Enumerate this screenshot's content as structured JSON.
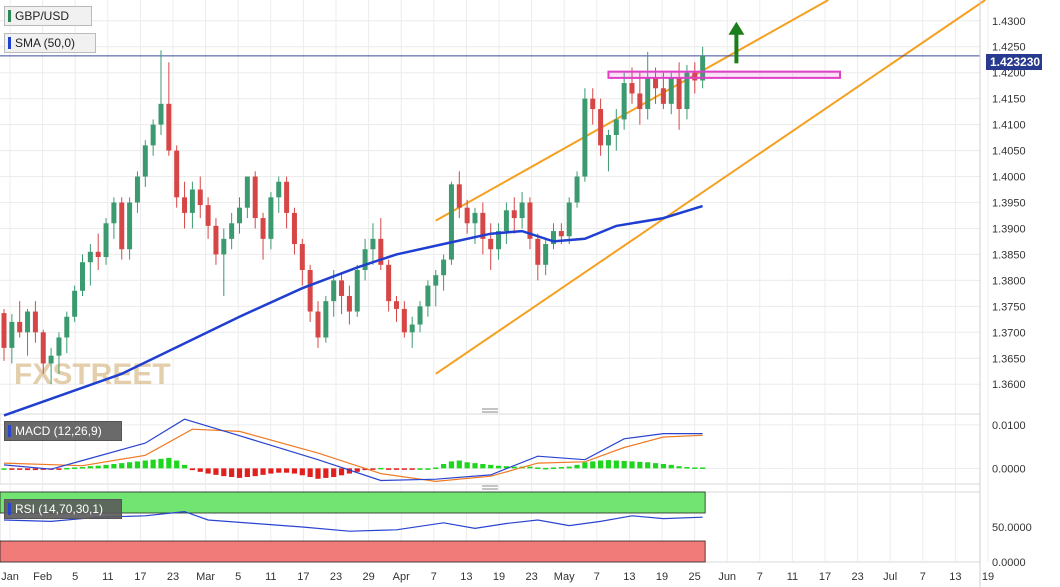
{
  "header": {
    "symbol": "GBP/USD",
    "sma_label": "SMA (50,0)",
    "last_price": "1.423230"
  },
  "watermark": "FXSTREET",
  "colors": {
    "bull": "#3c9a70",
    "bear": "#d64646",
    "sma": "#1f3fd1",
    "channel": "#f5a020",
    "resistance_box": "#e040c8",
    "arrow": "#1a7f1a",
    "price_line": "#3b4a9a",
    "macd_line": "#2a44d0",
    "signal_line": "#f07a24",
    "hist_pos": "#1fd61f",
    "hist_neg": "#e01f1f",
    "rsi_line": "#2a44d0",
    "rsi_overbought": "#72e472",
    "rsi_oversold": "#f07b78"
  },
  "chart_data": [
    {
      "type": "candlestick",
      "title": "GBP/USD",
      "indicator": "SMA (50,0)",
      "ylim": [
        1.356,
        1.434
      ],
      "y_ticks": [
        "1.4300",
        "1.4250",
        "1.4200",
        "1.4150",
        "1.4100",
        "1.4050",
        "1.4000",
        "1.3950",
        "1.3900",
        "1.3850",
        "1.3800",
        "1.3750",
        "1.3700",
        "1.3650",
        "1.3600"
      ],
      "x_ticks": [
        "Jan",
        "Feb",
        "5",
        "11",
        "17",
        "23",
        "Mar",
        "5",
        "11",
        "17",
        "23",
        "29",
        "Apr",
        "7",
        "13",
        "19",
        "23",
        "May",
        "7",
        "13",
        "19",
        "25",
        "Jun",
        "7",
        "11",
        "17",
        "23",
        "Jul",
        "7",
        "13",
        "19"
      ],
      "last_price": 1.42323,
      "candles_ohlc": [
        [
          1.3737,
          1.3745,
          1.3645,
          1.367
        ],
        [
          1.367,
          1.3735,
          1.364,
          1.372
        ],
        [
          1.372,
          1.376,
          1.369,
          1.37
        ],
        [
          1.37,
          1.3745,
          1.3655,
          1.374
        ],
        [
          1.374,
          1.376,
          1.368,
          1.37
        ],
        [
          1.37,
          1.3705,
          1.362,
          1.364
        ],
        [
          1.364,
          1.367,
          1.36,
          1.3655
        ],
        [
          1.3655,
          1.37,
          1.362,
          1.369
        ],
        [
          1.369,
          1.374,
          1.366,
          1.373
        ],
        [
          1.373,
          1.379,
          1.372,
          1.378
        ],
        [
          1.378,
          1.385,
          1.377,
          1.3835
        ],
        [
          1.3835,
          1.387,
          1.379,
          1.3855
        ],
        [
          1.3855,
          1.389,
          1.382,
          1.3845
        ],
        [
          1.3845,
          1.392,
          1.383,
          1.391
        ],
        [
          1.391,
          1.396,
          1.388,
          1.395
        ],
        [
          1.395,
          1.396,
          1.384,
          1.386
        ],
        [
          1.386,
          1.396,
          1.384,
          1.395
        ],
        [
          1.395,
          1.401,
          1.393,
          1.4
        ],
        [
          1.4,
          1.407,
          1.398,
          1.406
        ],
        [
          1.406,
          1.411,
          1.404,
          1.41
        ],
        [
          1.41,
          1.4243,
          1.408,
          1.414
        ],
        [
          1.414,
          1.422,
          1.404,
          1.405
        ],
        [
          1.405,
          1.406,
          1.394,
          1.396
        ],
        [
          1.396,
          1.399,
          1.39,
          1.393
        ],
        [
          1.393,
          1.399,
          1.39,
          1.3975
        ],
        [
          1.3975,
          1.4,
          1.392,
          1.3945
        ],
        [
          1.3945,
          1.396,
          1.388,
          1.3905
        ],
        [
          1.3905,
          1.392,
          1.383,
          1.385
        ],
        [
          1.385,
          1.39,
          1.377,
          1.388
        ],
        [
          1.388,
          1.393,
          1.386,
          1.391
        ],
        [
          1.391,
          1.396,
          1.389,
          1.394
        ],
        [
          1.394,
          1.4,
          1.392,
          1.4
        ],
        [
          1.4,
          1.401,
          1.39,
          1.392
        ],
        [
          1.392,
          1.393,
          1.384,
          1.388
        ],
        [
          1.388,
          1.397,
          1.386,
          1.396
        ],
        [
          1.396,
          1.4,
          1.393,
          1.399
        ],
        [
          1.399,
          1.4,
          1.39,
          1.393
        ],
        [
          1.393,
          1.394,
          1.385,
          1.387
        ],
        [
          1.387,
          1.388,
          1.379,
          1.382
        ],
        [
          1.382,
          1.383,
          1.372,
          1.374
        ],
        [
          1.374,
          1.376,
          1.367,
          1.369
        ],
        [
          1.369,
          1.377,
          1.368,
          1.376
        ],
        [
          1.376,
          1.382,
          1.373,
          1.38
        ],
        [
          1.38,
          1.3815,
          1.3735,
          1.377
        ],
        [
          1.377,
          1.379,
          1.3715,
          1.374
        ],
        [
          1.374,
          1.383,
          1.373,
          1.382
        ],
        [
          1.382,
          1.388,
          1.38,
          1.386
        ],
        [
          1.386,
          1.391,
          1.383,
          1.388
        ],
        [
          1.388,
          1.392,
          1.382,
          1.383
        ],
        [
          1.383,
          1.384,
          1.374,
          1.376
        ],
        [
          1.376,
          1.377,
          1.372,
          1.3745
        ],
        [
          1.3745,
          1.376,
          1.369,
          1.37
        ],
        [
          1.37,
          1.373,
          1.367,
          1.3715
        ],
        [
          1.3715,
          1.376,
          1.37,
          1.375
        ],
        [
          1.375,
          1.38,
          1.373,
          1.379
        ],
        [
          1.379,
          1.382,
          1.375,
          1.381
        ],
        [
          1.381,
          1.385,
          1.378,
          1.384
        ],
        [
          1.384,
          1.399,
          1.383,
          1.3985
        ],
        [
          1.3985,
          1.401,
          1.392,
          1.394
        ],
        [
          1.394,
          1.3955,
          1.389,
          1.391
        ],
        [
          1.391,
          1.394,
          1.387,
          1.393
        ],
        [
          1.393,
          1.395,
          1.385,
          1.388
        ],
        [
          1.388,
          1.391,
          1.382,
          1.386
        ],
        [
          1.386,
          1.391,
          1.384,
          1.3895
        ],
        [
          1.3895,
          1.395,
          1.387,
          1.3935
        ],
        [
          1.3935,
          1.396,
          1.389,
          1.392
        ],
        [
          1.392,
          1.397,
          1.39,
          1.395
        ],
        [
          1.395,
          1.396,
          1.386,
          1.388
        ],
        [
          1.388,
          1.389,
          1.38,
          1.383
        ],
        [
          1.383,
          1.388,
          1.381,
          1.387
        ],
        [
          1.387,
          1.391,
          1.386,
          1.3895
        ],
        [
          1.3895,
          1.391,
          1.387,
          1.3885
        ],
        [
          1.3885,
          1.396,
          1.387,
          1.395
        ],
        [
          1.395,
          1.401,
          1.394,
          1.4
        ],
        [
          1.4,
          1.417,
          1.399,
          1.415
        ],
        [
          1.415,
          1.417,
          1.41,
          1.413
        ],
        [
          1.413,
          1.415,
          1.404,
          1.406
        ],
        [
          1.406,
          1.409,
          1.401,
          1.408
        ],
        [
          1.408,
          1.413,
          1.405,
          1.411
        ],
        [
          1.411,
          1.42,
          1.409,
          1.418
        ],
        [
          1.418,
          1.421,
          1.414,
          1.416
        ],
        [
          1.416,
          1.42,
          1.41,
          1.413
        ],
        [
          1.413,
          1.424,
          1.411,
          1.419
        ],
        [
          1.419,
          1.421,
          1.414,
          1.417
        ],
        [
          1.417,
          1.42,
          1.413,
          1.414
        ],
        [
          1.414,
          1.42,
          1.412,
          1.419
        ],
        [
          1.419,
          1.422,
          1.409,
          1.413
        ],
        [
          1.413,
          1.4215,
          1.411,
          1.42
        ],
        [
          1.42,
          1.422,
          1.416,
          1.4185
        ],
        [
          1.4185,
          1.425,
          1.417,
          1.4232
        ]
      ],
      "sma_50_points": [
        [
          0,
          1.354
        ],
        [
          15,
          1.362
        ],
        [
          30,
          1.373
        ],
        [
          38,
          1.3785
        ],
        [
          45,
          1.3825
        ],
        [
          50,
          1.385
        ],
        [
          56,
          1.387
        ],
        [
          62,
          1.389
        ],
        [
          66,
          1.3895
        ],
        [
          70,
          1.3875
        ],
        [
          74,
          1.388
        ],
        [
          78,
          1.3905
        ],
        [
          84,
          1.392
        ],
        [
          89,
          1.3943
        ]
      ],
      "annotations": {
        "channel_upper": [
          [
            55,
            1.3915
          ],
          [
            105,
            1.434
          ]
        ],
        "channel_lower": [
          [
            55,
            1.362
          ],
          [
            125,
            1.434
          ]
        ],
        "resistance_box": [
          1.419,
          1.4202
        ],
        "arrow": "up"
      }
    },
    {
      "type": "macd",
      "label": "MACD (12,26,9)",
      "y_ticks": [
        "0.0100",
        "0.0000"
      ],
      "ylim": [
        -0.0036,
        0.0125
      ],
      "macd_points": [
        [
          0,
          0.0008
        ],
        [
          6,
          -0.0002
        ],
        [
          10,
          0.0018
        ],
        [
          18,
          0.0058
        ],
        [
          23,
          0.0113
        ],
        [
          30,
          0.0075
        ],
        [
          40,
          0.002
        ],
        [
          48,
          -0.0028
        ],
        [
          55,
          -0.0025
        ],
        [
          62,
          -0.0015
        ],
        [
          68,
          0.0028
        ],
        [
          74,
          0.002
        ],
        [
          79,
          0.0068
        ],
        [
          84,
          0.008
        ],
        [
          89,
          0.008
        ]
      ],
      "signal_points": [
        [
          0,
          0.0012
        ],
        [
          10,
          0.0006
        ],
        [
          18,
          0.003
        ],
        [
          24,
          0.009
        ],
        [
          30,
          0.0085
        ],
        [
          40,
          0.0035
        ],
        [
          48,
          -0.0012
        ],
        [
          55,
          -0.003
        ],
        [
          62,
          -0.0018
        ],
        [
          68,
          0.0012
        ],
        [
          74,
          0.0015
        ],
        [
          79,
          0.0048
        ],
        [
          84,
          0.0072
        ],
        [
          89,
          0.0076
        ]
      ],
      "histogram": [
        0.0,
        -0.0002,
        -0.0003,
        -0.0004,
        -0.0004,
        -0.0003,
        -0.0002,
        -0.0001,
        0.0001,
        0.0002,
        0.0003,
        0.0005,
        0.0006,
        0.0008,
        0.001,
        0.0012,
        0.0014,
        0.0016,
        0.0018,
        0.002,
        0.0022,
        0.0024,
        0.0018,
        0.0008,
        -0.0004,
        -0.0008,
        -0.0012,
        -0.0015,
        -0.0018,
        -0.002,
        -0.0022,
        -0.002,
        -0.0018,
        -0.0015,
        -0.0012,
        -0.001,
        -0.001,
        -0.0012,
        -0.0016,
        -0.002,
        -0.0024,
        -0.0022,
        -0.002,
        -0.0016,
        -0.0012,
        -0.0008,
        -0.0004,
        -0.0002,
        0.0001,
        -0.0001,
        -0.0002,
        -0.0002,
        -0.0001,
        0.0,
        0.0,
        0.0002,
        0.001,
        0.0016,
        0.0018,
        0.0014,
        0.0012,
        0.001,
        0.0008,
        0.0006,
        0.0005,
        0.0004,
        0.0004,
        0.0004,
        0.0002,
        0.0001,
        0.0002,
        0.0003,
        0.0004,
        0.0008,
        0.0014,
        0.0016,
        0.0018,
        0.0019,
        0.0018,
        0.0017,
        0.0016,
        0.0015,
        0.0014,
        0.0012,
        0.001,
        0.0008,
        0.0005,
        0.0003,
        0.0002,
        0.0002
      ]
    },
    {
      "type": "line",
      "label": "RSI (14,70,30,1)",
      "y_ticks": [
        "50.0000",
        "0.0000"
      ],
      "ylim": [
        0,
        100
      ],
      "overbought": 70,
      "oversold": 30,
      "rsi_points": [
        [
          0,
          60
        ],
        [
          6,
          58
        ],
        [
          12,
          64
        ],
        [
          18,
          66
        ],
        [
          23,
          72
        ],
        [
          26,
          60
        ],
        [
          32,
          55
        ],
        [
          38,
          50
        ],
        [
          44,
          44
        ],
        [
          50,
          46
        ],
        [
          56,
          56
        ],
        [
          60,
          48
        ],
        [
          64,
          55
        ],
        [
          68,
          60
        ],
        [
          72,
          52
        ],
        [
          76,
          58
        ],
        [
          80,
          66
        ],
        [
          84,
          62
        ],
        [
          89,
          64
        ]
      ]
    }
  ]
}
